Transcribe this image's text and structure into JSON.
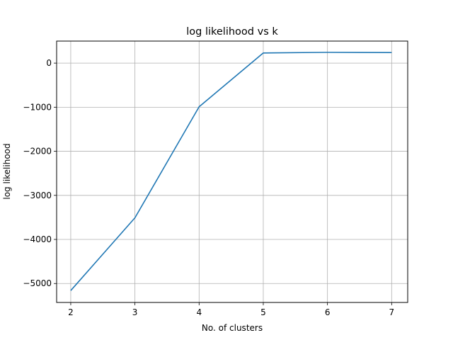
{
  "chart_data": {
    "type": "line",
    "title": "log likelihood vs k",
    "xlabel": "No. of clusters",
    "ylabel": "log likelihood",
    "x": [
      2,
      3,
      4,
      5,
      6,
      7
    ],
    "series": [
      {
        "values": [
          -5160,
          -3510,
          -990,
          230,
          245,
          240
        ]
      }
    ],
    "xlim": [
      1.78,
      7.25
    ],
    "ylim": [
      -5430,
      500
    ],
    "xticks": [
      2,
      3,
      4,
      5,
      6,
      7
    ],
    "xtick_labels": [
      "2",
      "3",
      "4",
      "5",
      "6",
      "7"
    ],
    "yticks": [
      0,
      -1000,
      -2000,
      -3000,
      -4000,
      -5000
    ],
    "ytick_labels": [
      "0",
      "−1000",
      "−2000",
      "−3000",
      "−4000",
      "−5000"
    ],
    "grid": true,
    "line_color": "#1f77b4",
    "grid_color": "#b0b0b0"
  }
}
